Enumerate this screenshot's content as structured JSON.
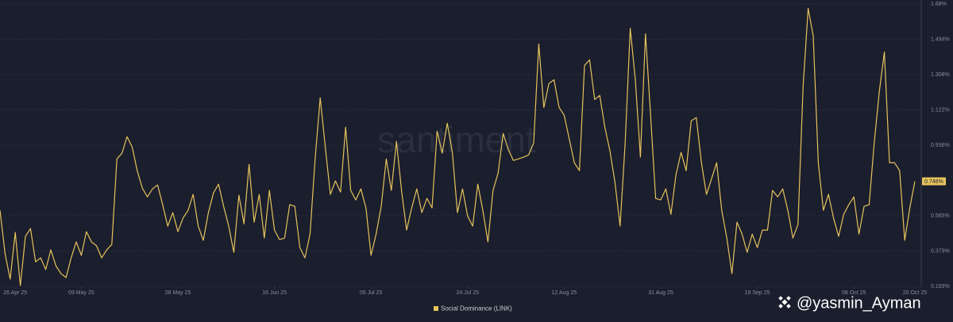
{
  "chart_data": {
    "type": "line",
    "watermark": "santiment",
    "credit": "@yasmin_Ayman",
    "last_value_label": "0.746%",
    "grid": true,
    "xlim": [
      "2025-04-23",
      "2025-10-20"
    ],
    "ylim": [
      0.193,
      1.68
    ],
    "yticks": [
      {
        "value": 0.193,
        "label": "0.193%"
      },
      {
        "value": 0.379,
        "label": "0.379%"
      },
      {
        "value": 0.565,
        "label": "0.565%"
      },
      {
        "value": 0.936,
        "label": "0.936%"
      },
      {
        "value": 1.122,
        "label": "1.122%"
      },
      {
        "value": 1.308,
        "label": "1.308%"
      },
      {
        "value": 1.494,
        "label": "1.494%"
      },
      {
        "value": 1.68,
        "label": "1.68%"
      }
    ],
    "xticks": [
      {
        "value": "2025-04-26",
        "label": "26 Apr 25"
      },
      {
        "value": "2025-05-09",
        "label": "09 May 25"
      },
      {
        "value": "2025-05-28",
        "label": "28 May 25"
      },
      {
        "value": "2025-06-16",
        "label": "16 Jun 25"
      },
      {
        "value": "2025-07-05",
        "label": "05 Jul 25"
      },
      {
        "value": "2025-07-24",
        "label": "24 Jul 25"
      },
      {
        "value": "2025-08-12",
        "label": "12 Aug 25"
      },
      {
        "value": "2025-08-31",
        "label": "31 Aug 25"
      },
      {
        "value": "2025-09-19",
        "label": "19 Sep 25"
      },
      {
        "value": "2025-10-08",
        "label": "08 Oct 25"
      },
      {
        "value": "2025-10-20",
        "label": "20 Oct 25"
      }
    ],
    "x": [
      "2025-04-23",
      "2025-04-24",
      "2025-04-25",
      "2025-04-26",
      "2025-04-27",
      "2025-04-28",
      "2025-04-29",
      "2025-04-30",
      "2025-05-01",
      "2025-05-02",
      "2025-05-03",
      "2025-05-04",
      "2025-05-05",
      "2025-05-06",
      "2025-05-07",
      "2025-05-08",
      "2025-05-09",
      "2025-05-10",
      "2025-05-11",
      "2025-05-12",
      "2025-05-13",
      "2025-05-14",
      "2025-05-15",
      "2025-05-16",
      "2025-05-17",
      "2025-05-18",
      "2025-05-19",
      "2025-05-20",
      "2025-05-21",
      "2025-05-22",
      "2025-05-23",
      "2025-05-24",
      "2025-05-25",
      "2025-05-26",
      "2025-05-27",
      "2025-05-28",
      "2025-05-29",
      "2025-05-30",
      "2025-05-31",
      "2025-06-01",
      "2025-06-02",
      "2025-06-03",
      "2025-06-04",
      "2025-06-05",
      "2025-06-06",
      "2025-06-07",
      "2025-06-08",
      "2025-06-09",
      "2025-06-10",
      "2025-06-11",
      "2025-06-12",
      "2025-06-13",
      "2025-06-14",
      "2025-06-15",
      "2025-06-16",
      "2025-06-17",
      "2025-06-18",
      "2025-06-19",
      "2025-06-20",
      "2025-06-21",
      "2025-06-22",
      "2025-06-23",
      "2025-06-24",
      "2025-06-25",
      "2025-06-26",
      "2025-06-27",
      "2025-06-28",
      "2025-06-29",
      "2025-06-30",
      "2025-07-01",
      "2025-07-02",
      "2025-07-03",
      "2025-07-04",
      "2025-07-05",
      "2025-07-06",
      "2025-07-07",
      "2025-07-08",
      "2025-07-09",
      "2025-07-10",
      "2025-07-11",
      "2025-07-12",
      "2025-07-13",
      "2025-07-14",
      "2025-07-15",
      "2025-07-16",
      "2025-07-17",
      "2025-07-18",
      "2025-07-19",
      "2025-07-20",
      "2025-07-21",
      "2025-07-22",
      "2025-07-23",
      "2025-07-24",
      "2025-07-25",
      "2025-07-26",
      "2025-07-27",
      "2025-07-28",
      "2025-07-29",
      "2025-07-30",
      "2025-07-31",
      "2025-08-01",
      "2025-08-02",
      "2025-08-03",
      "2025-08-04",
      "2025-08-05",
      "2025-08-06",
      "2025-08-07",
      "2025-08-08",
      "2025-08-09",
      "2025-08-10",
      "2025-08-11",
      "2025-08-12",
      "2025-08-13",
      "2025-08-14",
      "2025-08-15",
      "2025-08-16",
      "2025-08-17",
      "2025-08-18",
      "2025-08-19",
      "2025-08-20",
      "2025-08-21",
      "2025-08-22",
      "2025-08-23",
      "2025-08-24",
      "2025-08-25",
      "2025-08-26",
      "2025-08-27",
      "2025-08-28",
      "2025-08-29",
      "2025-08-30",
      "2025-08-31",
      "2025-09-01",
      "2025-09-02",
      "2025-09-03",
      "2025-09-04",
      "2025-09-05",
      "2025-09-06",
      "2025-09-07",
      "2025-09-08",
      "2025-09-09",
      "2025-09-10",
      "2025-09-11",
      "2025-09-12",
      "2025-09-13",
      "2025-09-14",
      "2025-09-15",
      "2025-09-16",
      "2025-09-17",
      "2025-09-18",
      "2025-09-19",
      "2025-09-20",
      "2025-09-21",
      "2025-09-22",
      "2025-09-23",
      "2025-09-24",
      "2025-09-25",
      "2025-09-26",
      "2025-09-27",
      "2025-09-28",
      "2025-09-29",
      "2025-09-30",
      "2025-10-01",
      "2025-10-02",
      "2025-10-03",
      "2025-10-04",
      "2025-10-05",
      "2025-10-06",
      "2025-10-07",
      "2025-10-08",
      "2025-10-09",
      "2025-10-10",
      "2025-10-11",
      "2025-10-12",
      "2025-10-13",
      "2025-10-14",
      "2025-10-15",
      "2025-10-16",
      "2025-10-17",
      "2025-10-18",
      "2025-10-19",
      "2025-10-20"
    ],
    "series": [
      {
        "name": "Social Dominance (LINK)",
        "color": "#e6c35c",
        "values": [
          0.593,
          0.364,
          0.231,
          0.477,
          0.197,
          0.456,
          0.497,
          0.322,
          0.343,
          0.281,
          0.385,
          0.301,
          0.26,
          0.239,
          0.343,
          0.427,
          0.356,
          0.481,
          0.427,
          0.406,
          0.343,
          0.385,
          0.414,
          0.864,
          0.894,
          0.981,
          0.927,
          0.802,
          0.71,
          0.664,
          0.706,
          0.727,
          0.623,
          0.51,
          0.581,
          0.481,
          0.552,
          0.593,
          0.677,
          0.51,
          0.435,
          0.581,
          0.685,
          0.731,
          0.614,
          0.51,
          0.372,
          0.673,
          0.522,
          0.835,
          0.531,
          0.677,
          0.447,
          0.698,
          0.489,
          0.439,
          0.447,
          0.623,
          0.614,
          0.397,
          0.343,
          0.468,
          0.864,
          1.186,
          0.927,
          0.677,
          0.748,
          0.689,
          1.031,
          0.698,
          0.648,
          0.706,
          0.606,
          0.356,
          0.468,
          0.614,
          0.864,
          0.698,
          0.956,
          0.698,
          0.489,
          0.606,
          0.706,
          0.581,
          0.656,
          0.606,
          1.01,
          0.894,
          1.052,
          0.898,
          0.581,
          0.706,
          0.564,
          0.51,
          0.731,
          0.593,
          0.427,
          0.698,
          0.789,
          0.998,
          0.914,
          0.856,
          0.864,
          0.873,
          0.885,
          0.948,
          1.469,
          1.135,
          1.261,
          1.281,
          1.135,
          1.094,
          0.969,
          0.844,
          0.802,
          1.356,
          1.386,
          1.177,
          1.198,
          1.031,
          0.906,
          0.739,
          0.51,
          0.948,
          1.552,
          1.281,
          0.873,
          1.523,
          1.094,
          0.656,
          0.648,
          0.706,
          0.572,
          0.781,
          0.898,
          0.802,
          1.065,
          1.081,
          0.844,
          0.677,
          0.76,
          0.844,
          0.593,
          0.447,
          0.26,
          0.531,
          0.468,
          0.372,
          0.468,
          0.397,
          0.489,
          0.489,
          0.698,
          0.664,
          0.706,
          0.593,
          0.447,
          0.518,
          1.24,
          1.657,
          1.511,
          0.844,
          0.593,
          0.677,
          0.552,
          0.456,
          0.572,
          0.623,
          0.664,
          0.468,
          0.614,
          0.623,
          0.948,
          1.219,
          1.427,
          0.844,
          0.844,
          0.802,
          0.435,
          0.606,
          0.746
        ]
      }
    ]
  }
}
